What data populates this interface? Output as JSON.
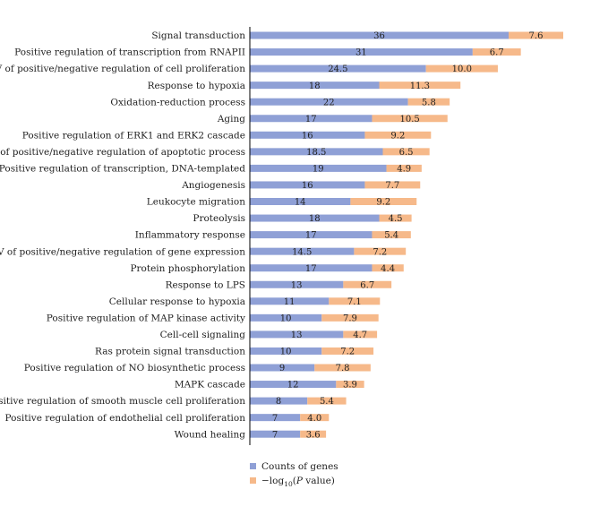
{
  "chart_data": {
    "type": "bar",
    "orientation": "horizontal",
    "stacked": true,
    "categories": [
      "Signal transduction",
      "Positive regulation of transcription from RNAPII",
      "AV of positive/negative regulation of cell proliferation",
      "Response to hypoxia",
      "Oxidation-reduction process",
      "Aging",
      "Positive regulation of ERK1 and ERK2 cascade",
      "AV of positive/negative regulation of apoptotic process",
      "Positive regulation of transcription, DNA-templated",
      "Angiogenesis",
      "Leukocyte migration",
      "Proteolysis",
      "Inflammatory response",
      "AV of positive/negative regulation of gene expression",
      "Protein phosphorylation",
      "Response to LPS",
      "Cellular response to hypoxia",
      "Positive regulation of MAP kinase activity",
      "Cell-cell signaling",
      "Ras protein signal transduction",
      "Positive regulation of NO biosynthetic process",
      "MAPK cascade",
      "Positive regulation of smooth muscle cell proliferation",
      "Positive regulation of endothelial cell proliferation",
      "Wound healing"
    ],
    "series": [
      {
        "name": "Counts of genes",
        "color": "#8fa0d6",
        "values": [
          36,
          31,
          24.5,
          18,
          22,
          17,
          16,
          18.5,
          19,
          16,
          14,
          18,
          17,
          14.5,
          17,
          13,
          11,
          10,
          13,
          10,
          9,
          12,
          8,
          7,
          7
        ],
        "labels": [
          "36",
          "31",
          "24.5",
          "18",
          "22",
          "17",
          "16",
          "18.5",
          "19",
          "16",
          "14",
          "18",
          "17",
          "14.5",
          "17",
          "13",
          "11",
          "10",
          "13",
          "10",
          "9",
          "12",
          "8",
          "7",
          "7"
        ]
      },
      {
        "name": "−log10(P value)",
        "name_parts": [
          "−log",
          "10",
          "(",
          "P",
          " value)"
        ],
        "color": "#f6b98a",
        "values": [
          7.6,
          6.7,
          10.0,
          11.3,
          5.8,
          10.5,
          9.2,
          6.5,
          4.9,
          7.7,
          9.2,
          4.5,
          5.4,
          7.2,
          4.4,
          6.7,
          7.1,
          7.9,
          4.7,
          7.2,
          7.8,
          3.9,
          5.4,
          4.0,
          3.6
        ],
        "labels": [
          "7.6",
          "6.7",
          "10.0",
          "11.3",
          "5.8",
          "10.5",
          "9.2",
          "6.5",
          "4.9",
          "7.7",
          "9.2",
          "4.5",
          "5.4",
          "7.2",
          "4.4",
          "6.7",
          "7.1",
          "7.9",
          "4.7",
          "7.2",
          "7.8",
          "3.9",
          "5.4",
          "4.0",
          "3.6"
        ]
      }
    ],
    "title": "",
    "xlabel": "",
    "ylabel": "",
    "xlim": [
      0,
      43.6
    ],
    "grid": false,
    "legend_position": "bottom-center"
  }
}
